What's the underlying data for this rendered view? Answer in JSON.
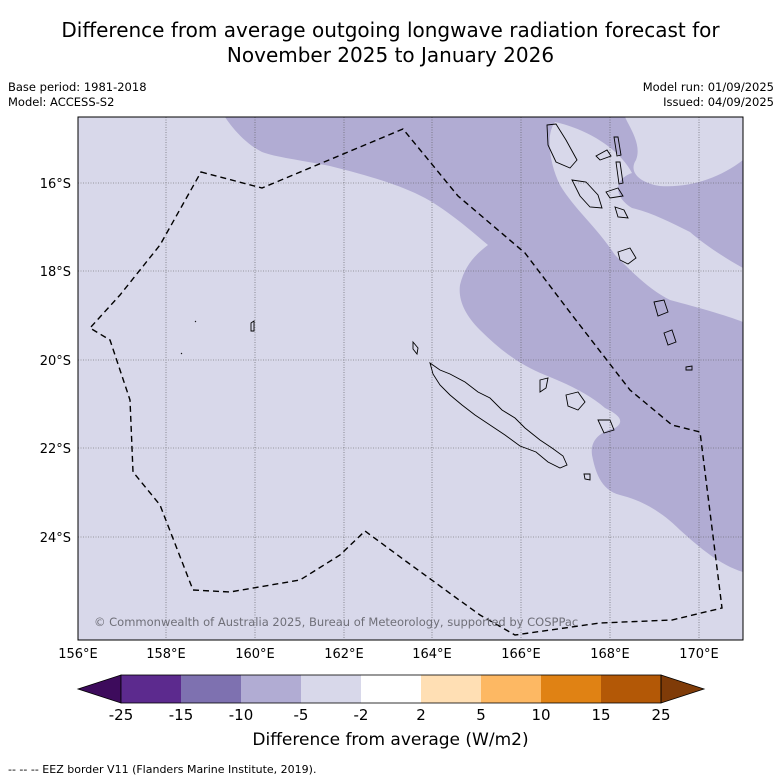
{
  "title_line1": "Difference from average outgoing longwave radiation forecast for",
  "title_line2": "November 2025 to January 2026",
  "meta": {
    "base_period": "Base period: 1981-2018",
    "model": "Model: ACCESS-S2",
    "model_run": "Model run: 01/09/2025",
    "issued": "Issued: 04/09/2025"
  },
  "map": {
    "lat_labels": [
      "16°S",
      "18°S",
      "20°S",
      "22°S",
      "24°S"
    ],
    "lon_labels": [
      "156°E",
      "158°E",
      "160°E",
      "162°E",
      "164°E",
      "166°E",
      "168°E",
      "170°E"
    ],
    "copyright": "© Commonwealth of Australia 2025, Bureau of Meteorology, supported by COSPPac",
    "colors": {
      "background_class": "#d8d8ea",
      "negative_class": "#b1acd3",
      "grid": "#555555",
      "border": "#000000"
    }
  },
  "colorbar": {
    "ticks": [
      "-25",
      "-15",
      "-10",
      "-5",
      "-2",
      "2",
      "5",
      "10",
      "15",
      "25"
    ],
    "colors": [
      "#3d0b5c",
      "#5c2a8e",
      "#7e71b0",
      "#b1acd3",
      "#d8d8ea",
      "#ffffff",
      "#ffdfb4",
      "#fdb863",
      "#e08214",
      "#b35806",
      "#7f3b08"
    ],
    "label": "Difference from average (W/m2)"
  },
  "footnote": "--  --  -- EEZ border V11 (Flanders Marine Institute, 2019)."
}
